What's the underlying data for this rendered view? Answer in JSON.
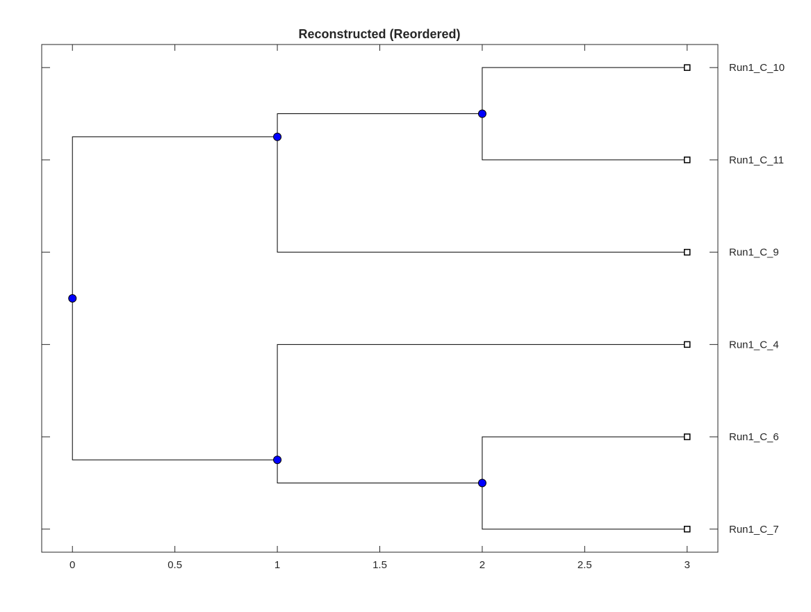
{
  "chart_data": {
    "type": "dendrogram",
    "title": "Reconstructed (Reordered)",
    "xlabel": "",
    "ylabel": "",
    "xlim": [
      -0.15,
      3.15
    ],
    "xticks": [
      0,
      0.5,
      1,
      1.5,
      2,
      2.5,
      3
    ],
    "xtick_labels": [
      "0",
      "0.5",
      "1",
      "1.5",
      "2",
      "2.5",
      "3"
    ],
    "ylim": [
      0.75,
      6.25
    ],
    "leaves": [
      {
        "id": "n10",
        "label": "Run1_C_10",
        "x": 3,
        "y": 6
      },
      {
        "id": "n11",
        "label": "Run1_C_11",
        "x": 3,
        "y": 5
      },
      {
        "id": "n9",
        "label": "Run1_C_9",
        "x": 3,
        "y": 4
      },
      {
        "id": "n4",
        "label": "Run1_C_4",
        "x": 3,
        "y": 3
      },
      {
        "id": "n6",
        "label": "Run1_C_6",
        "x": 3,
        "y": 2
      },
      {
        "id": "n7",
        "label": "Run1_C_7",
        "x": 3,
        "y": 1
      }
    ],
    "internal_nodes": [
      {
        "id": "root",
        "x": 0,
        "y": 3.5
      },
      {
        "id": "a",
        "x": 1,
        "y": 5.25
      },
      {
        "id": "b",
        "x": 1,
        "y": 1.75
      },
      {
        "id": "a1",
        "x": 2,
        "y": 5.5
      },
      {
        "id": "b1",
        "x": 2,
        "y": 1.5
      }
    ],
    "edges": [
      [
        "root",
        "a"
      ],
      [
        "root",
        "b"
      ],
      [
        "a",
        "a1"
      ],
      [
        "a",
        "n9"
      ],
      [
        "a1",
        "n10"
      ],
      [
        "a1",
        "n11"
      ],
      [
        "b",
        "n4"
      ],
      [
        "b",
        "b1"
      ],
      [
        "b1",
        "n6"
      ],
      [
        "b1",
        "n7"
      ]
    ],
    "internal_marker_color": "#0000ff",
    "leaf_marker": "square",
    "grid": false
  }
}
